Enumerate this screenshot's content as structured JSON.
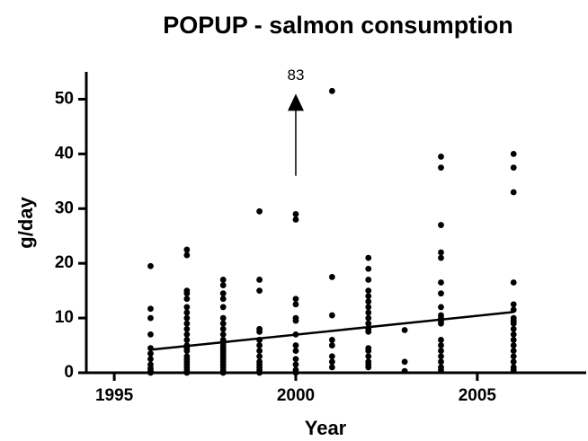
{
  "chart_data": {
    "type": "scatter",
    "title": "POPUP - salmon consumption",
    "x_label": "Year",
    "y_label": "g/day",
    "color": "#000000",
    "groups": [
      {
        "x": 1996,
        "values": [
          19.5,
          11.7,
          10,
          7,
          4.5,
          3.5,
          2.5,
          1.5,
          0.8,
          0.3,
          0
        ]
      },
      {
        "x": 1997,
        "values": [
          22.5,
          21.5,
          15,
          14.5,
          13.5,
          12,
          11,
          10,
          9,
          8,
          7,
          6,
          5,
          4.5,
          4,
          3,
          2.5,
          2,
          1.5,
          1,
          0.5,
          0
        ]
      },
      {
        "x": 1998,
        "values": [
          17,
          16,
          14.5,
          13.5,
          12,
          10,
          9,
          8,
          7,
          6,
          5.5,
          5,
          4.5,
          4,
          3.5,
          3,
          2.5,
          2,
          1.5,
          1,
          0.5,
          0
        ]
      },
      {
        "x": 1999,
        "values": [
          29.5,
          17,
          15,
          8,
          7.5,
          6,
          5,
          4,
          3,
          2,
          1.5,
          1,
          0.5,
          0
        ]
      },
      {
        "x": 2000,
        "values": [
          29,
          28,
          13.5,
          12.5,
          10,
          9.5,
          7,
          5,
          4,
          2.5,
          1.5,
          0.5,
          0
        ]
      },
      {
        "x": 2001,
        "values": [
          51.5,
          17.5,
          10.5,
          6,
          5,
          3,
          2,
          1
        ]
      },
      {
        "x": 2002,
        "values": [
          21,
          19,
          17,
          15,
          14,
          13,
          12,
          11,
          10,
          9,
          8,
          7.5,
          4.5,
          4,
          3,
          2,
          1.5,
          1
        ]
      },
      {
        "x": 2003,
        "values": [
          7.8,
          2,
          0.3
        ]
      },
      {
        "x": 2004,
        "values": [
          39.5,
          37.5,
          27,
          22,
          21,
          16.5,
          14.5,
          12,
          10.5,
          10,
          9.5,
          9,
          6,
          5,
          4,
          3,
          2,
          1,
          0.5
        ]
      },
      {
        "x": 2006,
        "values": [
          40,
          37.5,
          33,
          16.5,
          12.5,
          11.5,
          10,
          9.5,
          9,
          8,
          7,
          6,
          5,
          4,
          3,
          2,
          1,
          0.5
        ]
      }
    ],
    "trend": {
      "x": [
        1996,
        2006
      ],
      "values": [
        4.2,
        11.1
      ]
    },
    "annotation": {
      "label": "83",
      "x": 2000,
      "y_start": 36,
      "y_end": 51
    },
    "xlim": [
      1994.23,
      2008
    ],
    "ylim": [
      0,
      55
    ],
    "xticks": [
      1995,
      2000,
      2005
    ],
    "yticks": [
      0,
      10,
      20,
      30,
      40,
      50
    ]
  }
}
